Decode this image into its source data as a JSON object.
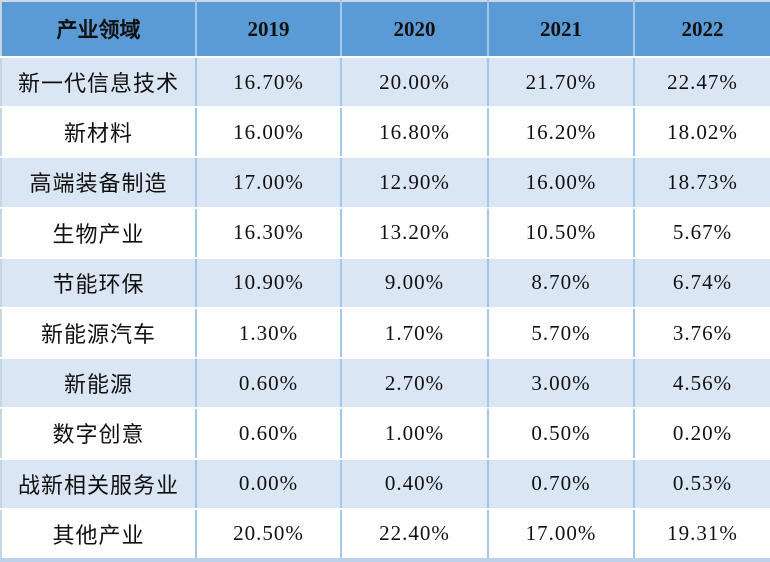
{
  "colors": {
    "header_bg": "#5b9bd5",
    "band_row_bg": "#dae6f3",
    "plain_row_bg": "#ffffff",
    "vertical_gridline": "#a3c7e8",
    "horizontal_gridline": "#ffffff",
    "outer_border": "#bcd2ea",
    "text": "#111111"
  },
  "chart_data": {
    "type": "table",
    "columns": [
      "产业领域",
      "2019",
      "2020",
      "2021",
      "2022"
    ],
    "categories": [
      "新一代信息技术",
      "新材料",
      "高端装备制造",
      "生物产业",
      "节能环保",
      "新能源汽车",
      "新能源",
      "数字创意",
      "战新相关服务业",
      "其他产业"
    ],
    "unit": "%",
    "rows": [
      {
        "label": "新一代信息技术",
        "values": [
          "16.70%",
          "20.00%",
          "21.70%",
          "22.47%"
        ]
      },
      {
        "label": "新材料",
        "values": [
          "16.00%",
          "16.80%",
          "16.20%",
          "18.02%"
        ]
      },
      {
        "label": "高端装备制造",
        "values": [
          "17.00%",
          "12.90%",
          "16.00%",
          "18.73%"
        ]
      },
      {
        "label": "生物产业",
        "values": [
          "16.30%",
          "13.20%",
          "10.50%",
          "5.67%"
        ]
      },
      {
        "label": "节能环保",
        "values": [
          "10.90%",
          "9.00%",
          "8.70%",
          "6.74%"
        ]
      },
      {
        "label": "新能源汽车",
        "values": [
          "1.30%",
          "1.70%",
          "5.70%",
          "3.76%"
        ]
      },
      {
        "label": "新能源",
        "values": [
          "0.60%",
          "2.70%",
          "3.00%",
          "4.56%"
        ]
      },
      {
        "label": "数字创意",
        "values": [
          "0.60%",
          "1.00%",
          "0.50%",
          "0.20%"
        ]
      },
      {
        "label": "战新相关服务业",
        "values": [
          "0.00%",
          "0.40%",
          "0.70%",
          "0.53%"
        ]
      },
      {
        "label": "其他产业",
        "values": [
          "20.50%",
          "22.40%",
          "17.00%",
          "19.31%"
        ]
      }
    ],
    "series": [
      {
        "name": "2019",
        "values": [
          16.7,
          16.0,
          17.0,
          16.3,
          10.9,
          1.3,
          0.6,
          0.6,
          0.0,
          20.5
        ]
      },
      {
        "name": "2020",
        "values": [
          20.0,
          16.8,
          12.9,
          13.2,
          9.0,
          1.7,
          2.7,
          1.0,
          0.4,
          22.4
        ]
      },
      {
        "name": "2021",
        "values": [
          21.7,
          16.2,
          16.0,
          10.5,
          8.7,
          5.7,
          3.0,
          0.5,
          0.7,
          17.0
        ]
      },
      {
        "name": "2022",
        "values": [
          22.47,
          18.02,
          18.73,
          5.67,
          6.74,
          3.76,
          4.56,
          0.2,
          0.53,
          19.31
        ]
      }
    ]
  }
}
